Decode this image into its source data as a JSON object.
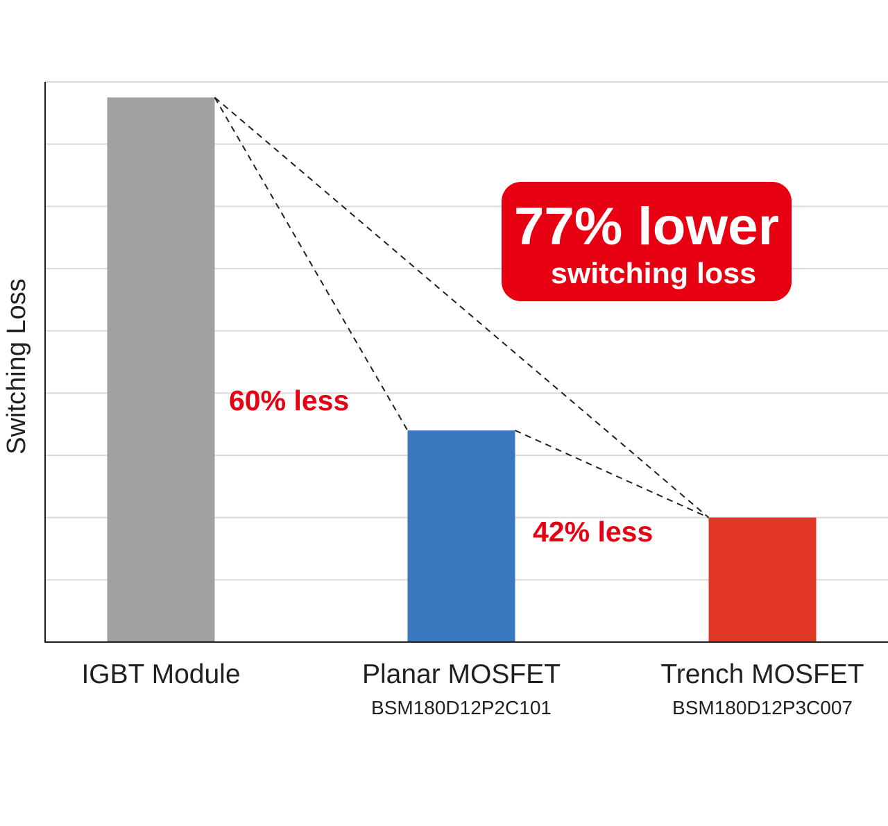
{
  "chart_data": {
    "type": "bar",
    "title": "",
    "xlabel": "",
    "ylabel": "Switching Loss",
    "ylim": [
      0,
      9
    ],
    "grid": true,
    "categories": [
      "IGBT Module",
      "Planar MOSFET",
      "Trench MOSFET"
    ],
    "category_sublabels": [
      "",
      "BSM180D12P2C101",
      "BSM180D12P3C007"
    ],
    "values": [
      8.75,
      3.4,
      2.0
    ],
    "bar_colors": [
      "#a0a0a0",
      "#3a78bf",
      "#e23726"
    ],
    "annotations": {
      "igbt_to_planar": "60% less",
      "planar_to_trench": "42% less",
      "callout_big": "77% lower",
      "callout_small": "switching loss"
    },
    "colors": {
      "annotation_text": "#e60012",
      "callout_background": "#e60012",
      "callout_text": "#ffffff",
      "gridline": "#d9d9d9",
      "axis": "#231f20"
    }
  }
}
